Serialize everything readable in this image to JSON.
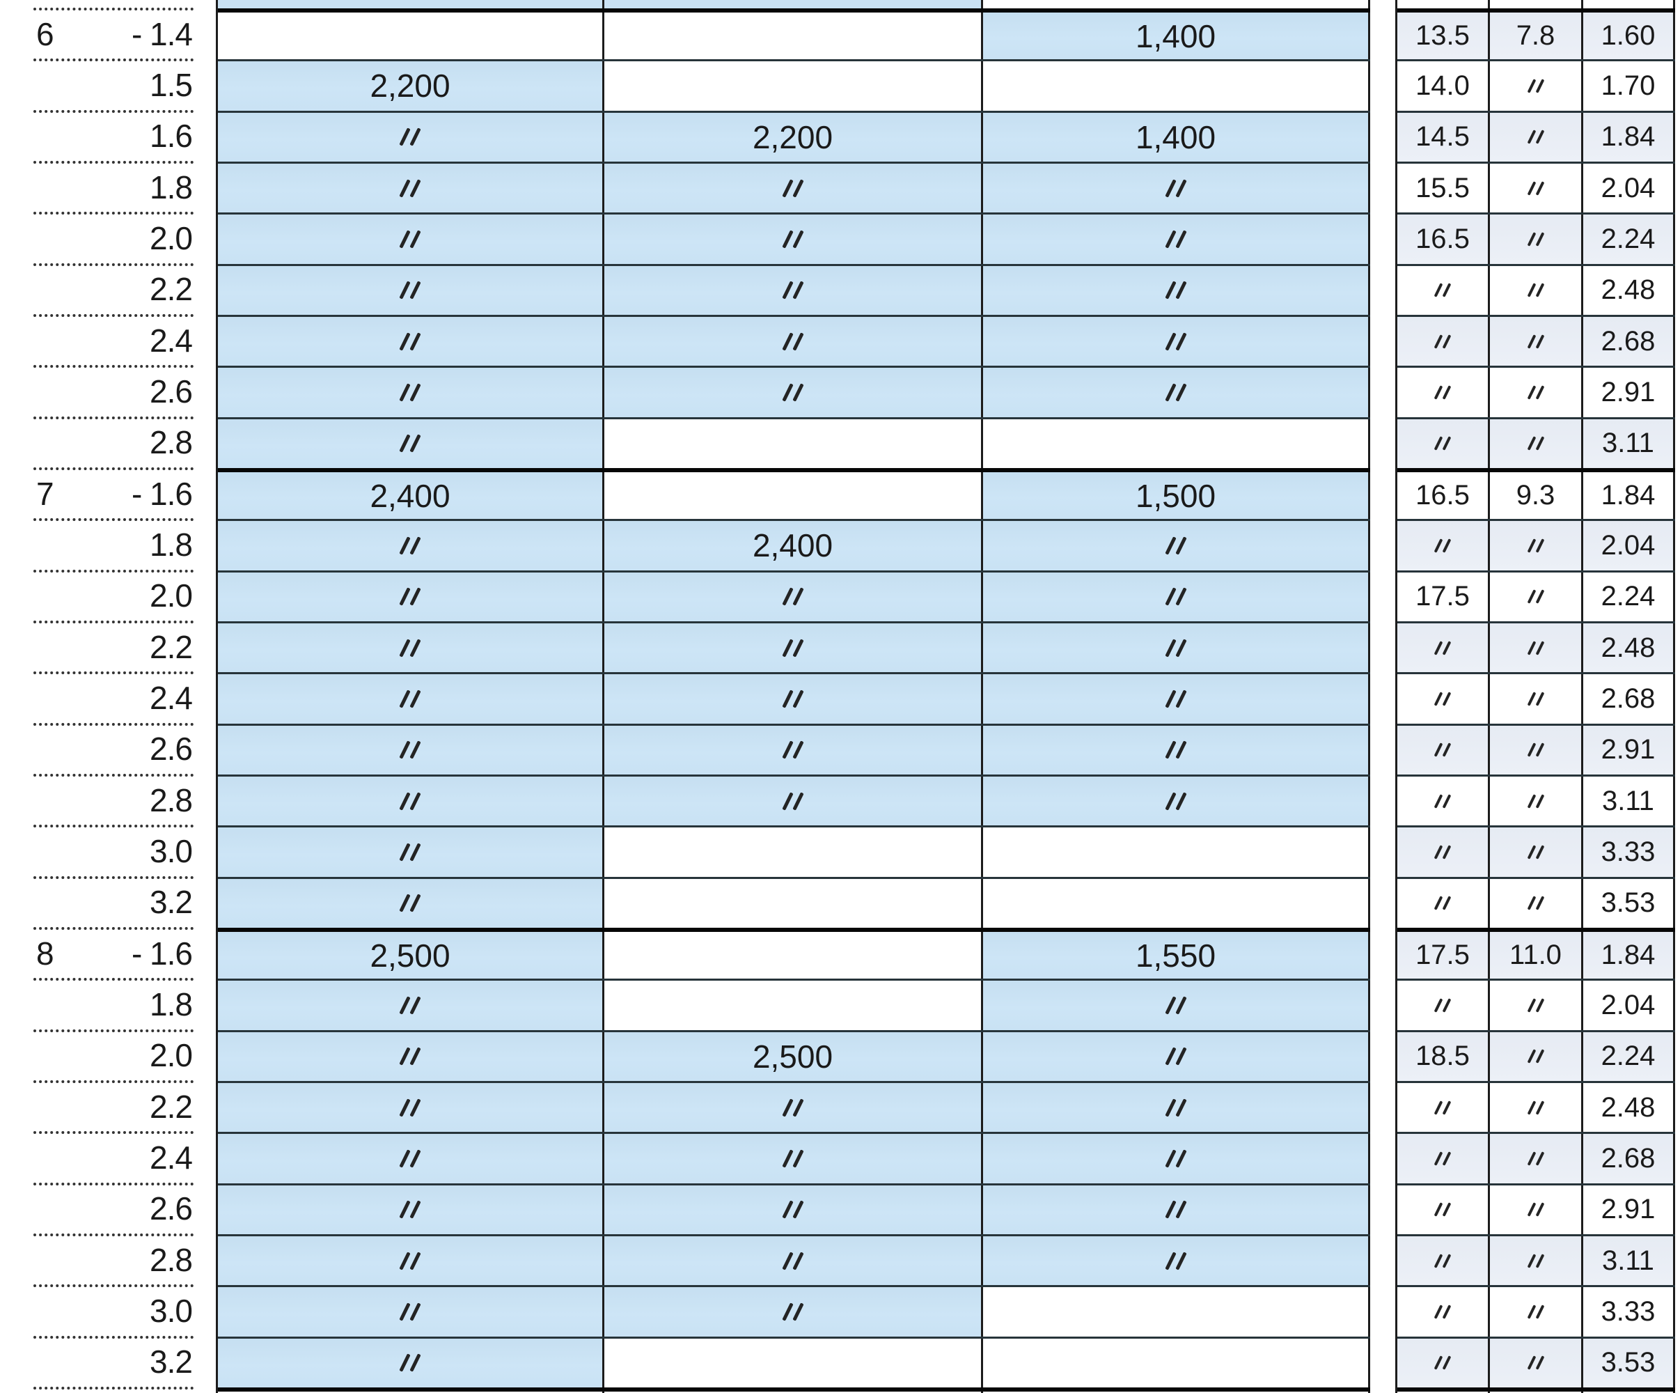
{
  "ditto_symbol": "〃",
  "colors": {
    "highlight_blue": "#cae2f4",
    "side_row_tint": "#e9edf5",
    "thin_border": "#27343a",
    "thick_border": "#070707",
    "text": "#1a1a1a"
  },
  "rows": [
    {
      "group": "6",
      "dash": "-",
      "size": "1.4",
      "span1": "",
      "span2": "",
      "span3": "1,400",
      "side1": "13.5",
      "side2": "7.8",
      "side3": "1.60",
      "group_start": true
    },
    {
      "group": "",
      "dash": "",
      "size": "1.5",
      "span1": "2,200",
      "span2": "",
      "span3": "",
      "side1": "14.0",
      "side2": "〃",
      "side3": "1.70",
      "group_start": false
    },
    {
      "group": "",
      "dash": "",
      "size": "1.6",
      "span1": "〃",
      "span2": "2,200",
      "span3": "1,400",
      "side1": "14.5",
      "side2": "〃",
      "side3": "1.84",
      "group_start": false
    },
    {
      "group": "",
      "dash": "",
      "size": "1.8",
      "span1": "〃",
      "span2": "〃",
      "span3": "〃",
      "side1": "15.5",
      "side2": "〃",
      "side3": "2.04",
      "group_start": false
    },
    {
      "group": "",
      "dash": "",
      "size": "2.0",
      "span1": "〃",
      "span2": "〃",
      "span3": "〃",
      "side1": "16.5",
      "side2": "〃",
      "side3": "2.24",
      "group_start": false
    },
    {
      "group": "",
      "dash": "",
      "size": "2.2",
      "span1": "〃",
      "span2": "〃",
      "span3": "〃",
      "side1": "〃",
      "side2": "〃",
      "side3": "2.48",
      "group_start": false
    },
    {
      "group": "",
      "dash": "",
      "size": "2.4",
      "span1": "〃",
      "span2": "〃",
      "span3": "〃",
      "side1": "〃",
      "side2": "〃",
      "side3": "2.68",
      "group_start": false
    },
    {
      "group": "",
      "dash": "",
      "size": "2.6",
      "span1": "〃",
      "span2": "〃",
      "span3": "〃",
      "side1": "〃",
      "side2": "〃",
      "side3": "2.91",
      "group_start": false
    },
    {
      "group": "",
      "dash": "",
      "size": "2.8",
      "span1": "〃",
      "span2": "",
      "span3": "",
      "side1": "〃",
      "side2": "〃",
      "side3": "3.11",
      "group_start": false
    },
    {
      "group": "7",
      "dash": "-",
      "size": "1.6",
      "span1": "2,400",
      "span2": "",
      "span3": "1,500",
      "side1": "16.5",
      "side2": "9.3",
      "side3": "1.84",
      "group_start": true
    },
    {
      "group": "",
      "dash": "",
      "size": "1.8",
      "span1": "〃",
      "span2": "2,400",
      "span3": "〃",
      "side1": "〃",
      "side2": "〃",
      "side3": "2.04",
      "group_start": false
    },
    {
      "group": "",
      "dash": "",
      "size": "2.0",
      "span1": "〃",
      "span2": "〃",
      "span3": "〃",
      "side1": "17.5",
      "side2": "〃",
      "side3": "2.24",
      "group_start": false
    },
    {
      "group": "",
      "dash": "",
      "size": "2.2",
      "span1": "〃",
      "span2": "〃",
      "span3": "〃",
      "side1": "〃",
      "side2": "〃",
      "side3": "2.48",
      "group_start": false
    },
    {
      "group": "",
      "dash": "",
      "size": "2.4",
      "span1": "〃",
      "span2": "〃",
      "span3": "〃",
      "side1": "〃",
      "side2": "〃",
      "side3": "2.68",
      "group_start": false
    },
    {
      "group": "",
      "dash": "",
      "size": "2.6",
      "span1": "〃",
      "span2": "〃",
      "span3": "〃",
      "side1": "〃",
      "side2": "〃",
      "side3": "2.91",
      "group_start": false
    },
    {
      "group": "",
      "dash": "",
      "size": "2.8",
      "span1": "〃",
      "span2": "〃",
      "span3": "〃",
      "side1": "〃",
      "side2": "〃",
      "side3": "3.11",
      "group_start": false
    },
    {
      "group": "",
      "dash": "",
      "size": "3.0",
      "span1": "〃",
      "span2": "",
      "span3": "",
      "side1": "〃",
      "side2": "〃",
      "side3": "3.33",
      "group_start": false
    },
    {
      "group": "",
      "dash": "",
      "size": "3.2",
      "span1": "〃",
      "span2": "",
      "span3": "",
      "side1": "〃",
      "side2": "〃",
      "side3": "3.53",
      "group_start": false
    },
    {
      "group": "8",
      "dash": "-",
      "size": "1.6",
      "span1": "2,500",
      "span2": "",
      "span3": "1,550",
      "side1": "17.5",
      "side2": "11.0",
      "side3": "1.84",
      "group_start": true
    },
    {
      "group": "",
      "dash": "",
      "size": "1.8",
      "span1": "〃",
      "span2": "",
      "span3": "〃",
      "side1": "〃",
      "side2": "〃",
      "side3": "2.04",
      "group_start": false
    },
    {
      "group": "",
      "dash": "",
      "size": "2.0",
      "span1": "〃",
      "span2": "2,500",
      "span3": "〃",
      "side1": "18.5",
      "side2": "〃",
      "side3": "2.24",
      "group_start": false
    },
    {
      "group": "",
      "dash": "",
      "size": "2.2",
      "span1": "〃",
      "span2": "〃",
      "span3": "〃",
      "side1": "〃",
      "side2": "〃",
      "side3": "2.48",
      "group_start": false
    },
    {
      "group": "",
      "dash": "",
      "size": "2.4",
      "span1": "〃",
      "span2": "〃",
      "span3": "〃",
      "side1": "〃",
      "side2": "〃",
      "side3": "2.68",
      "group_start": false
    },
    {
      "group": "",
      "dash": "",
      "size": "2.6",
      "span1": "〃",
      "span2": "〃",
      "span3": "〃",
      "side1": "〃",
      "side2": "〃",
      "side3": "2.91",
      "group_start": false
    },
    {
      "group": "",
      "dash": "",
      "size": "2.8",
      "span1": "〃",
      "span2": "〃",
      "span3": "〃",
      "side1": "〃",
      "side2": "〃",
      "side3": "3.11",
      "group_start": false
    },
    {
      "group": "",
      "dash": "",
      "size": "3.0",
      "span1": "〃",
      "span2": "〃",
      "span3": "",
      "side1": "〃",
      "side2": "〃",
      "side3": "3.33",
      "group_start": false
    },
    {
      "group": "",
      "dash": "",
      "size": "3.2",
      "span1": "〃",
      "span2": "",
      "span3": "",
      "side1": "〃",
      "side2": "〃",
      "side3": "3.53",
      "group_start": false
    }
  ]
}
